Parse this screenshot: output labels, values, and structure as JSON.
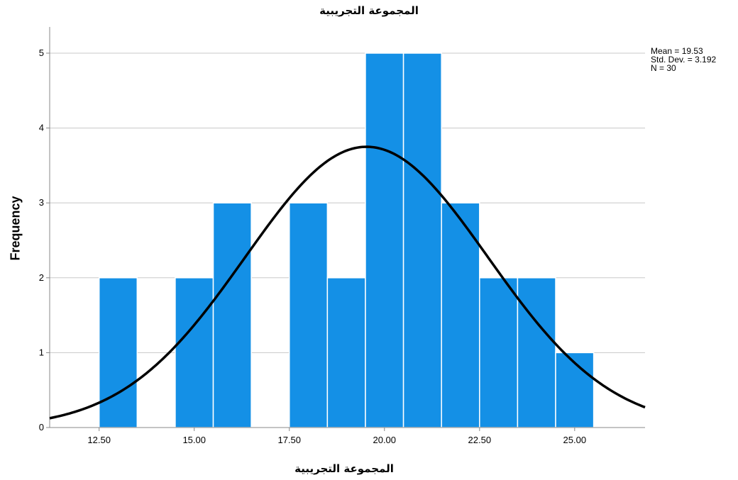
{
  "chart_data": {
    "type": "bar",
    "title": "المجموعة التجريبية",
    "xlabel": "المجموعة التجريبية",
    "ylabel": "Frequency",
    "bins": [
      {
        "start": 12.5,
        "end": 13.5,
        "count": 2
      },
      {
        "start": 14.5,
        "end": 15.5,
        "count": 2
      },
      {
        "start": 15.5,
        "end": 16.5,
        "count": 3
      },
      {
        "start": 17.5,
        "end": 18.5,
        "count": 3
      },
      {
        "start": 18.5,
        "end": 19.5,
        "count": 2
      },
      {
        "start": 19.5,
        "end": 20.5,
        "count": 5
      },
      {
        "start": 20.5,
        "end": 21.5,
        "count": 5
      },
      {
        "start": 21.5,
        "end": 22.5,
        "count": 3
      },
      {
        "start": 22.5,
        "end": 23.5,
        "count": 2
      },
      {
        "start": 23.5,
        "end": 24.5,
        "count": 2
      },
      {
        "start": 24.5,
        "end": 25.5,
        "count": 1
      }
    ],
    "xlim": [
      11.2,
      26.85
    ],
    "ylim": [
      0,
      5.35
    ],
    "x_ticks": [
      12.5,
      15.0,
      17.5,
      20.0,
      22.5,
      25.0
    ],
    "x_tick_labels": [
      "12.50",
      "15.00",
      "17.50",
      "20.00",
      "22.50",
      "25.00"
    ],
    "y_ticks": [
      0,
      1,
      2,
      3,
      4,
      5
    ],
    "y_tick_labels": [
      "0",
      "1",
      "2",
      "3",
      "4",
      "5"
    ],
    "grid": "horizontal",
    "normal_curve": {
      "mean": 19.53,
      "std_dev": 3.192,
      "n": 30,
      "bin_width": 1.0
    },
    "stats": {
      "mean": "Mean = 19.53",
      "std_dev": "Std. Dev. = 3.192",
      "n": "N = 30"
    },
    "colors": {
      "bar": "#1490e6",
      "bar_edge": "#ffffff",
      "curve": "#000000",
      "grid": "#c8c8c8",
      "axis": "#888888"
    }
  }
}
